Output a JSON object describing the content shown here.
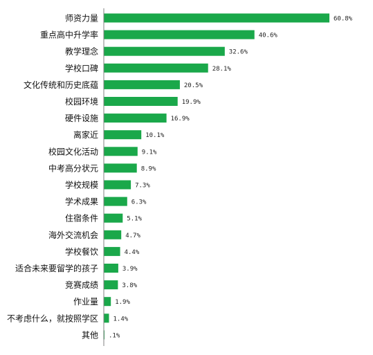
{
  "chart_data": {
    "type": "bar",
    "orientation": "horizontal",
    "title": "",
    "xlabel": "",
    "ylabel": "",
    "xlim": [
      0,
      70
    ],
    "grid": false,
    "legend": "none",
    "bar_color": "#1aa84a",
    "categories": [
      "师资力量",
      "重点高中升学率",
      "教学理念",
      "学校口碑",
      "文化传统和历史底蕴",
      "校园环境",
      "硬件设施",
      "离家近",
      "校园文化活动",
      "中考高分状元",
      "学校规模",
      "学术成果",
      "住宿条件",
      "海外交流机会",
      "学校餐饮",
      "适合未来要留学的孩子",
      "竞赛成绩",
      "作业量",
      "不考虑什么，就按照学区",
      "其他"
    ],
    "values": [
      60.8,
      40.6,
      32.6,
      28.1,
      20.5,
      19.9,
      16.9,
      10.1,
      9.1,
      8.9,
      7.3,
      6.3,
      5.1,
      4.7,
      4.4,
      3.9,
      3.8,
      1.9,
      1.4,
      0.1
    ],
    "value_labels": [
      "60.8%",
      "40.6%",
      "32.6%",
      "28.1%",
      "20.5%",
      "19.9%",
      "16.9%",
      "10.1%",
      "9.1%",
      "8.9%",
      "7.3%",
      "6.3%",
      "5.1%",
      "4.7%",
      "4.4%",
      "3.9%",
      "3.8%",
      "1.9%",
      "1.4%",
      ".1%"
    ]
  }
}
